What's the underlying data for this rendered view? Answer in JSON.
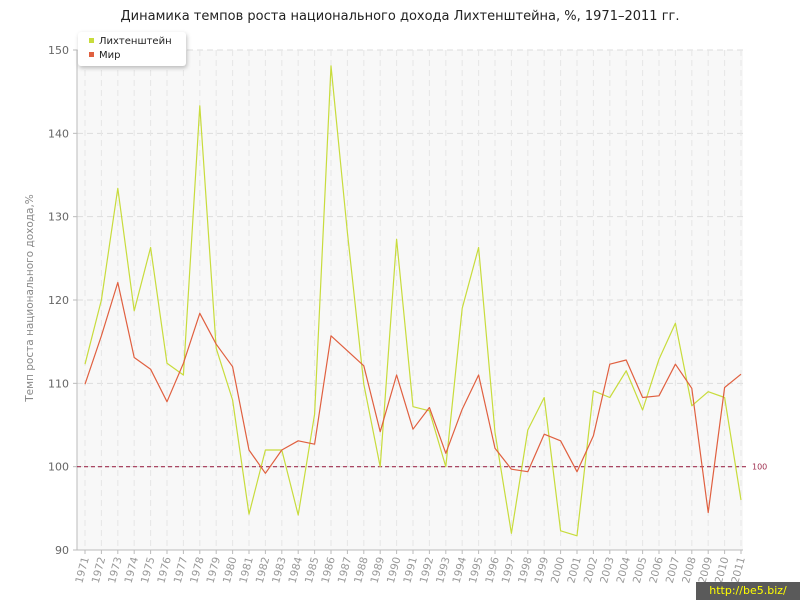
{
  "chart_data": {
    "type": "line",
    "title": "Динамика темпов роста национального дохода Лихтенштейна, %, 1971–2011 гг.",
    "xlabel": "",
    "ylabel": "Темп роста национального дохода,%",
    "ylim": [
      90,
      150
    ],
    "yticks": [
      90,
      100,
      110,
      120,
      130,
      140,
      150
    ],
    "grid": true,
    "legend_position": "top-left",
    "categories": [
      "1971",
      "1972",
      "1973",
      "1974",
      "1975",
      "1976",
      "1977",
      "1978",
      "1979",
      "1980",
      "1981",
      "1982",
      "1983",
      "1984",
      "1985",
      "1986",
      "1987",
      "1988",
      "1989",
      "1990",
      "1991",
      "1992",
      "1993",
      "1994",
      "1995",
      "1996",
      "1997",
      "1998",
      "1999",
      "2000",
      "2001",
      "2002",
      "2003",
      "2004",
      "2005",
      "2006",
      "2007",
      "2008",
      "2009",
      "2010",
      "2011"
    ],
    "series": [
      {
        "name": "Лихтенштейн",
        "color": "#c8dc3c",
        "values": [
          112.3,
          120.0,
          133.4,
          118.7,
          126.3,
          112.4,
          111.0,
          143.3,
          114.2,
          108.0,
          94.3,
          102.0,
          102.0,
          94.2,
          106.3,
          148.1,
          128.1,
          109.9,
          100.0,
          127.3,
          107.2,
          106.7,
          100.0,
          119.0,
          126.3,
          104.1,
          92.0,
          104.4,
          108.3,
          92.3,
          91.7,
          109.1,
          108.3,
          111.5,
          106.8,
          112.9,
          117.2,
          107.3,
          109.0,
          108.3,
          96.0
        ]
      },
      {
        "name": "Мир",
        "color": "#e06040",
        "values": [
          109.9,
          115.7,
          122.1,
          113.1,
          111.7,
          107.8,
          112.4,
          118.4,
          114.7,
          112.0,
          102.0,
          99.2,
          102.0,
          103.1,
          102.7,
          115.7,
          113.9,
          112.1,
          104.2,
          111.0,
          104.5,
          107.1,
          101.6,
          106.9,
          111.0,
          102.2,
          99.7,
          99.4,
          103.9,
          103.1,
          99.4,
          103.7,
          112.3,
          112.8,
          108.3,
          108.5,
          112.3,
          109.4,
          94.5,
          109.5,
          111.1
        ]
      }
    ],
    "reference_line": {
      "value": 100,
      "label": "100",
      "color": "#a03050"
    }
  },
  "watermark": "http://be5.biz/"
}
